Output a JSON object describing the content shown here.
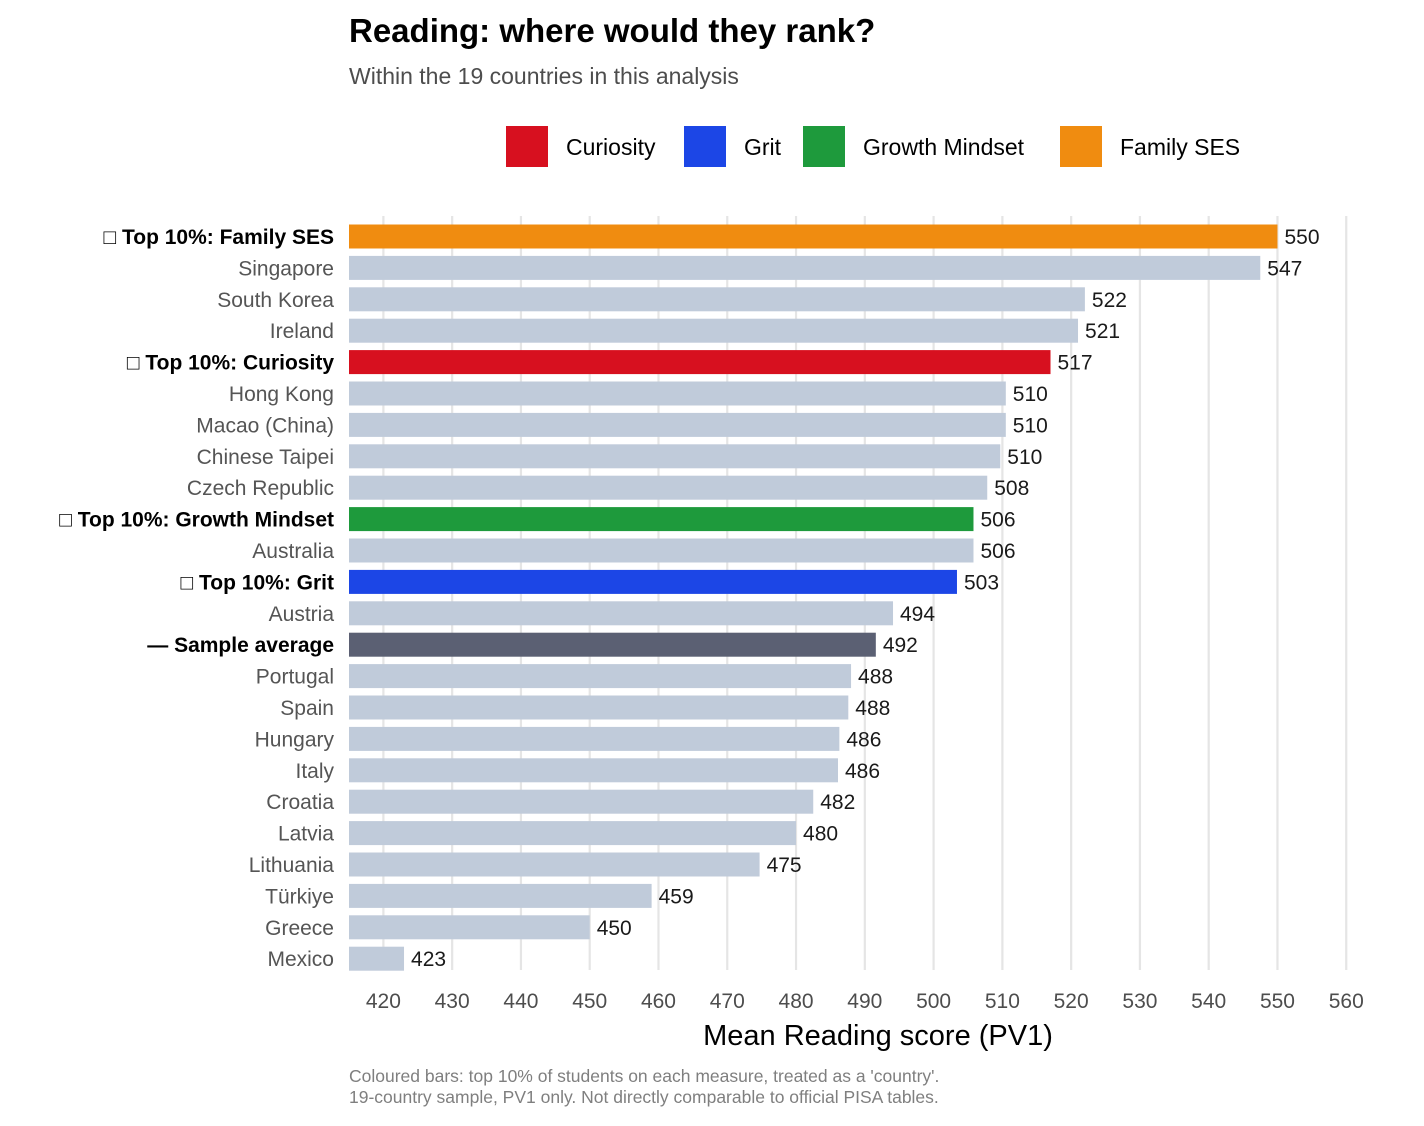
{
  "title": "Reading: where would they rank?",
  "subtitle": "Within the 19 countries in this analysis",
  "caption": {
    "line1": "Coloured bars: top 10% of students on each measure, treated as a 'country'.",
    "line2": "19-country sample, PV1 only. Not directly comparable to official PISA tables."
  },
  "colors": {
    "curiosity": "#d7101f",
    "grit": "#1c46e6",
    "growth_mindset": "#1e9a3c",
    "family_ses": "#f08c10",
    "country": "#c0cbda",
    "sample_average": "#5b6073",
    "gridline": "#e5e5e5"
  },
  "chart_data": {
    "type": "bar",
    "orientation": "horizontal",
    "xlabel": "Mean Reading score (PV1)",
    "xlim": [
      415,
      562
    ],
    "xticks": [
      420,
      430,
      440,
      450,
      460,
      470,
      480,
      490,
      500,
      510,
      520,
      530,
      540,
      550,
      560
    ],
    "grid": true,
    "legend_position": "top",
    "legend": [
      {
        "label": "Curiosity",
        "key": "curiosity"
      },
      {
        "label": "Grit",
        "key": "grit"
      },
      {
        "label": "Growth Mindset",
        "key": "growth_mindset"
      },
      {
        "label": "Family SES",
        "key": "family_ses"
      }
    ],
    "bars": [
      {
        "label": "□ Top 10%: Family SES",
        "value": 550,
        "value_label": "550",
        "group": "family_ses",
        "bold": true
      },
      {
        "label": "Singapore",
        "value": 547.5,
        "value_label": "547",
        "group": "country",
        "bold": false
      },
      {
        "label": "South Korea",
        "value": 522,
        "value_label": "522",
        "group": "country",
        "bold": false
      },
      {
        "label": "Ireland",
        "value": 521,
        "value_label": "521",
        "group": "country",
        "bold": false
      },
      {
        "label": "□ Top 10%: Curiosity",
        "value": 517,
        "value_label": "517",
        "group": "curiosity",
        "bold": true
      },
      {
        "label": "Hong Kong",
        "value": 510.5,
        "value_label": "510",
        "group": "country",
        "bold": false
      },
      {
        "label": "Macao (China)",
        "value": 510.5,
        "value_label": "510",
        "group": "country",
        "bold": false
      },
      {
        "label": "Chinese Taipei",
        "value": 509.7,
        "value_label": "510",
        "group": "country",
        "bold": false
      },
      {
        "label": "Czech Republic",
        "value": 507.8,
        "value_label": "508",
        "group": "country",
        "bold": false
      },
      {
        "label": "□ Top 10%: Growth Mindset",
        "value": 505.8,
        "value_label": "506",
        "group": "growth_mindset",
        "bold": true
      },
      {
        "label": "Australia",
        "value": 505.8,
        "value_label": "506",
        "group": "country",
        "bold": false
      },
      {
        "label": "□ Top 10%: Grit",
        "value": 503.4,
        "value_label": "503",
        "group": "grit",
        "bold": true
      },
      {
        "label": "Austria",
        "value": 494.1,
        "value_label": "494",
        "group": "country",
        "bold": false
      },
      {
        "label": "— Sample average",
        "value": 491.6,
        "value_label": "492",
        "group": "sample_average",
        "bold": true
      },
      {
        "label": "Portugal",
        "value": 488,
        "value_label": "488",
        "group": "country",
        "bold": false
      },
      {
        "label": "Spain",
        "value": 487.6,
        "value_label": "488",
        "group": "country",
        "bold": false
      },
      {
        "label": "Hungary",
        "value": 486.3,
        "value_label": "486",
        "group": "country",
        "bold": false
      },
      {
        "label": "Italy",
        "value": 486.1,
        "value_label": "486",
        "group": "country",
        "bold": false
      },
      {
        "label": "Croatia",
        "value": 482.5,
        "value_label": "482",
        "group": "country",
        "bold": false
      },
      {
        "label": "Latvia",
        "value": 480,
        "value_label": "480",
        "group": "country",
        "bold": false
      },
      {
        "label": "Lithuania",
        "value": 474.7,
        "value_label": "475",
        "group": "country",
        "bold": false
      },
      {
        "label": "Türkiye",
        "value": 459,
        "value_label": "459",
        "group": "country",
        "bold": false
      },
      {
        "label": "Greece",
        "value": 450,
        "value_label": "450",
        "group": "country",
        "bold": false
      },
      {
        "label": "Mexico",
        "value": 423,
        "value_label": "423",
        "group": "country",
        "bold": false
      }
    ]
  }
}
